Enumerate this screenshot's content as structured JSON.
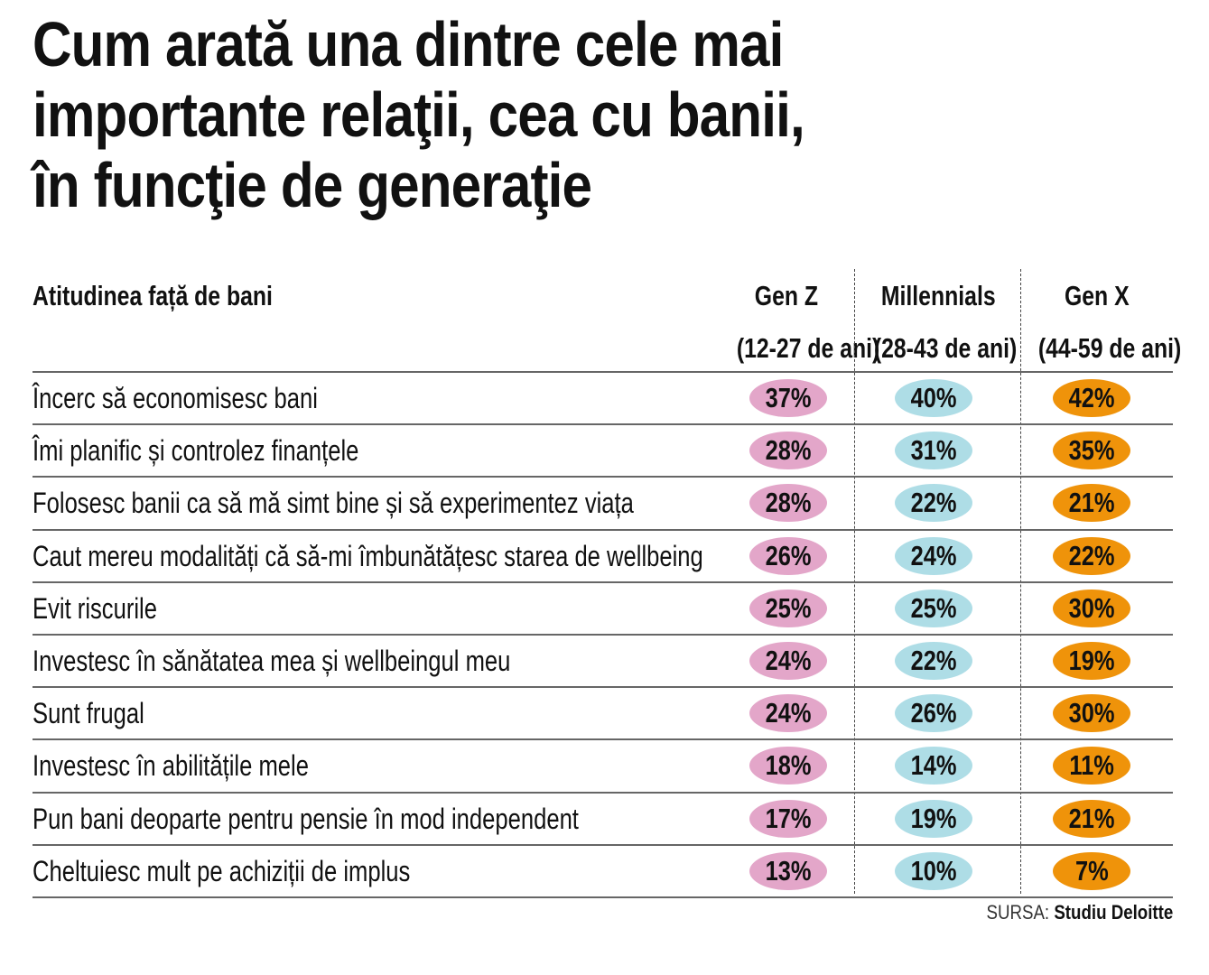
{
  "title_lines": [
    "Cum arată una dintre cele mai",
    "importante relaţii, cea cu banii,",
    "în funcţie de generaţie"
  ],
  "chart_data": {
    "type": "table",
    "title": "Cum arată una dintre cele mai importante relaţii, cea cu banii, în funcţie de generaţie",
    "row_header": "Atitudinea față de bani",
    "columns": [
      {
        "name": "Gen Z",
        "ages": "(12-27 de ani)",
        "color": "#e3a6c9"
      },
      {
        "name": "Millennials",
        "ages": "(28-43 de ani)",
        "color": "#aedde6"
      },
      {
        "name": "Gen X",
        "ages": "(44-59 de ani)",
        "color": "#ef930a"
      }
    ],
    "rows": [
      {
        "label": "Încerc să economisesc bani",
        "values": [
          "37%",
          "40%",
          "42%"
        ]
      },
      {
        "label": "Îmi planific și controlez finanțele",
        "values": [
          "28%",
          "31%",
          "35%"
        ]
      },
      {
        "label": "Folosesc banii ca să mă simt bine și să experimentez viața",
        "values": [
          "28%",
          "22%",
          "21%"
        ]
      },
      {
        "label": "Caut mereu modalități că să-mi îmbunătățesc starea de wellbeing",
        "values": [
          "26%",
          "24%",
          "22%"
        ]
      },
      {
        "label": "Evit riscurile",
        "values": [
          "25%",
          "25%",
          "30%"
        ]
      },
      {
        "label": "Investesc în sănătatea mea și wellbeingul meu",
        "values": [
          "24%",
          "22%",
          "19%"
        ]
      },
      {
        "label": "Sunt frugal",
        "values": [
          "24%",
          "26%",
          "30%"
        ]
      },
      {
        "label": "Investesc în abilitățile mele",
        "values": [
          "18%",
          "14%",
          "11%"
        ]
      },
      {
        "label": "Pun bani deoparte pentru pensie în mod independent",
        "values": [
          "17%",
          "19%",
          "21%"
        ]
      },
      {
        "label": "Cheltuiesc mult pe achiziții de implus",
        "values": [
          "13%",
          "10%",
          "7%"
        ]
      }
    ],
    "series": [
      {
        "name": "Gen Z",
        "values": [
          37,
          28,
          28,
          26,
          25,
          24,
          24,
          18,
          17,
          13
        ]
      },
      {
        "name": "Millennials",
        "values": [
          40,
          31,
          22,
          24,
          25,
          22,
          26,
          14,
          19,
          10
        ]
      },
      {
        "name": "Gen X",
        "values": [
          42,
          35,
          21,
          22,
          30,
          19,
          30,
          11,
          21,
          7
        ]
      }
    ],
    "unit": "%"
  },
  "source": {
    "prefix": "SURSA:",
    "name": "Studiu Deloitte"
  }
}
